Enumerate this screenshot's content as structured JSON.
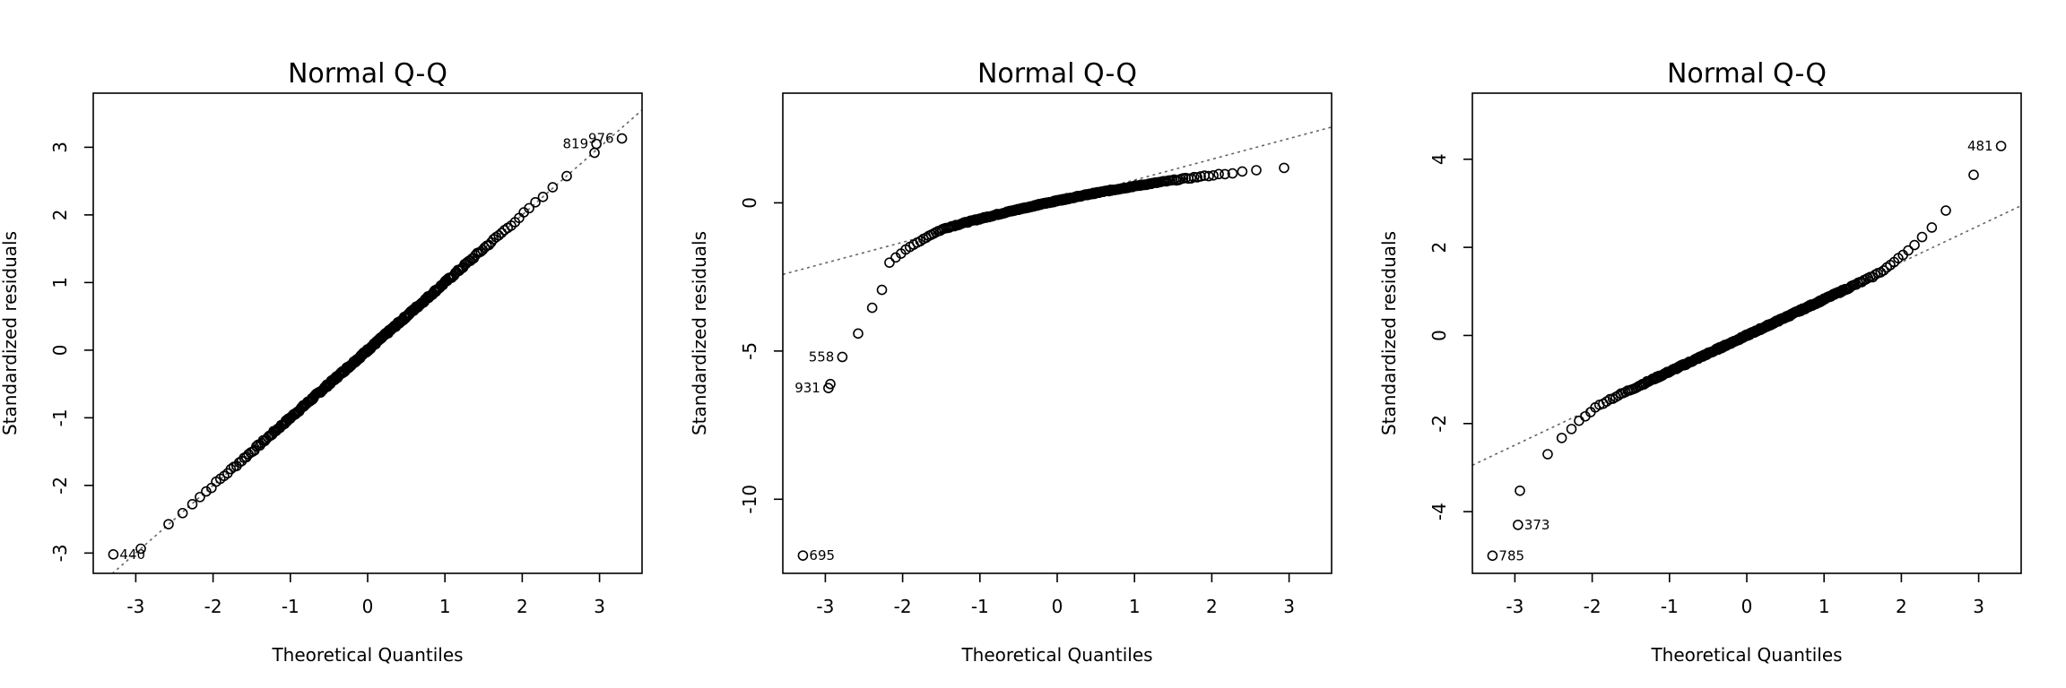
{
  "chart_data": [
    {
      "type": "scatter",
      "title": "Normal Q-Q",
      "xlabel": "Theoretical Quantiles",
      "ylabel": "Standardized residuals",
      "xlim": [
        -3.55,
        3.55
      ],
      "ylim": [
        -3.3,
        3.8
      ],
      "xticks": [
        -3,
        -2,
        -1,
        0,
        1,
        2,
        3
      ],
      "yticks": [
        -3,
        -2,
        -1,
        0,
        1,
        2,
        3
      ],
      "tick_labels_x": [
        "-3",
        "-2",
        "-1",
        "0",
        "1",
        "2",
        "3"
      ],
      "tick_labels_y": [
        "-3",
        "-2",
        "-1",
        "0",
        "1",
        "2",
        "3"
      ],
      "reference_line": {
        "intercept": 0,
        "slope": 1.0
      },
      "points": {
        "n": 300,
        "shape": "normal",
        "slope": 1.0,
        "intercept": 0
      },
      "labeled_points": [
        {
          "label": "440",
          "x": -3.29,
          "y": -3.02,
          "side": "right"
        },
        {
          "label": "976",
          "x": 3.29,
          "y": 3.13,
          "side": "left"
        },
        {
          "label": "819",
          "x": 2.96,
          "y": 3.05,
          "side": "left"
        }
      ]
    },
    {
      "type": "scatter",
      "title": "Normal Q-Q",
      "xlabel": "Theoretical Quantiles",
      "ylabel": "Standardized residuals",
      "xlim": [
        -3.55,
        3.55
      ],
      "ylim": [
        -12.5,
        3.7
      ],
      "xticks": [
        -3,
        -2,
        -1,
        0,
        1,
        2,
        3
      ],
      "yticks": [
        -10,
        -5,
        0
      ],
      "tick_labels_x": [
        "-3",
        "-2",
        "-1",
        "0",
        "1",
        "2",
        "3"
      ],
      "tick_labels_y": [
        "-10",
        "-5",
        "0"
      ],
      "reference_line": {
        "intercept": 0.07,
        "slope": 0.7
      },
      "points": {
        "n": 300,
        "shape": "left-skew"
      },
      "labeled_points": [
        {
          "label": "695",
          "x": -3.29,
          "y": -11.9,
          "side": "right"
        },
        {
          "label": "931",
          "x": -2.96,
          "y": -6.25,
          "side": "left"
        },
        {
          "label": "558",
          "x": -2.78,
          "y": -5.2,
          "side": "left"
        }
      ]
    },
    {
      "type": "scatter",
      "title": "Normal Q-Q",
      "xlabel": "Theoretical Quantiles",
      "ylabel": "Standardized residuals",
      "xlim": [
        -3.55,
        3.55
      ],
      "ylim": [
        -5.4,
        5.5
      ],
      "xticks": [
        -3,
        -2,
        -1,
        0,
        1,
        2,
        3
      ],
      "yticks": [
        -4,
        -2,
        0,
        2,
        4
      ],
      "tick_labels_x": [
        "-3",
        "-2",
        "-1",
        "0",
        "1",
        "2",
        "3"
      ],
      "tick_labels_y": [
        "-4",
        "-2",
        "0",
        "2",
        "4"
      ],
      "reference_line": {
        "intercept": 0,
        "slope": 0.83
      },
      "points": {
        "n": 300,
        "shape": "heavy-tail"
      },
      "labeled_points": [
        {
          "label": "785",
          "x": -3.29,
          "y": -5.0,
          "side": "right"
        },
        {
          "label": "373",
          "x": -2.96,
          "y": -4.3,
          "side": "right"
        },
        {
          "label": "481",
          "x": 3.29,
          "y": 4.3,
          "side": "left"
        }
      ]
    }
  ]
}
